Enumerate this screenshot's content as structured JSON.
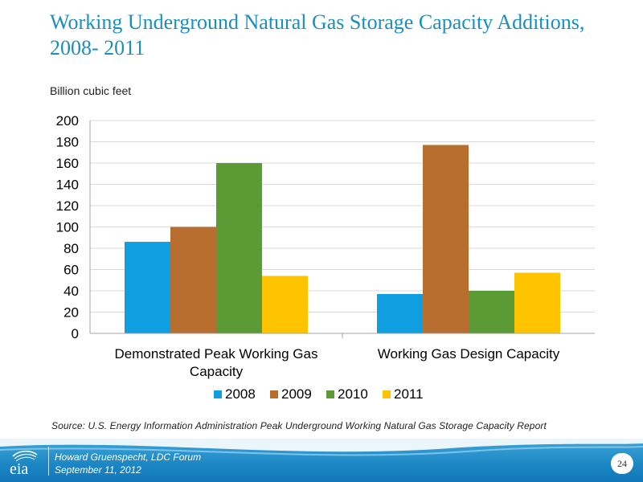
{
  "slide": {
    "title": "Working Underground Natural Gas Storage Capacity Additions, 2008- 2011",
    "source": "Source:  U.S. Energy Information Administration Peak Underground Working Natural Gas Storage Capacity Report",
    "page_number": "24"
  },
  "footer": {
    "logo_text": "eia",
    "presenter": "Howard Gruenspecht, LDC Forum",
    "date": "September 11, 2012"
  },
  "chart_data": {
    "type": "bar",
    "ylabel": "Billion cubic feet",
    "ylim": [
      0,
      200
    ],
    "yticks": [
      0,
      20,
      40,
      60,
      80,
      100,
      120,
      140,
      160,
      180,
      200
    ],
    "grid": true,
    "legend_position": "bottom",
    "categories": [
      [
        "Demonstrated Peak Working Gas",
        "Capacity"
      ],
      [
        "Working Gas Design Capacity"
      ]
    ],
    "series": [
      {
        "name": "2008",
        "color": "#0f9ee0",
        "values": [
          86,
          37
        ]
      },
      {
        "name": "2009",
        "color": "#b86e2e",
        "values": [
          100,
          177
        ]
      },
      {
        "name": "2010",
        "color": "#5c9a36",
        "values": [
          160,
          40
        ]
      },
      {
        "name": "2011",
        "color": "#ffc400",
        "values": [
          54,
          57
        ]
      }
    ]
  }
}
